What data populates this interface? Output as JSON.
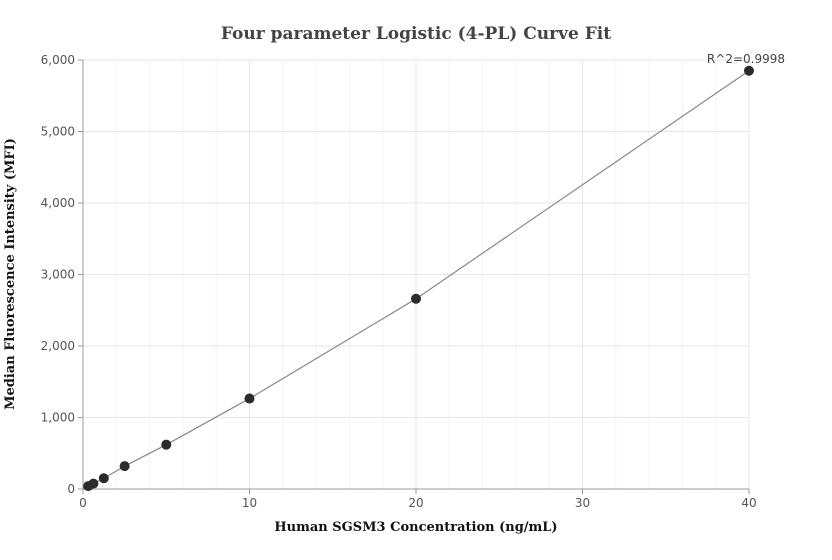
{
  "chart_data": {
    "type": "scatter",
    "title": "Four parameter Logistic (4-PL) Curve Fit",
    "xlabel": "Human SGSM3 Concentration (ng/mL)",
    "ylabel": "Median Fluorescence Intensity (MFI)",
    "xlim": [
      0,
      40
    ],
    "ylim": [
      0,
      6000
    ],
    "x_ticks": [
      0,
      10,
      20,
      30,
      40
    ],
    "y_ticks": [
      0,
      1000,
      2000,
      3000,
      4000,
      5000,
      6000
    ],
    "x_tick_labels": [
      "0",
      "10",
      "20",
      "30",
      "40"
    ],
    "y_tick_labels": [
      "0",
      "1,000",
      "2,000",
      "3,000",
      "4,000",
      "5,000",
      "6,000"
    ],
    "grid": true,
    "points": [
      {
        "x": 0.3125,
        "y": 40
      },
      {
        "x": 0.625,
        "y": 75
      },
      {
        "x": 1.25,
        "y": 150
      },
      {
        "x": 2.5,
        "y": 320
      },
      {
        "x": 5,
        "y": 620
      },
      {
        "x": 10,
        "y": 1265
      },
      {
        "x": 20,
        "y": 2660
      },
      {
        "x": 40,
        "y": 5850
      }
    ],
    "fit_curve": "4-PL",
    "annotation": "R^2=0.9998",
    "colors": {
      "points": "#2b2b2b",
      "curve": "#888888",
      "grid": "#e6e6e6",
      "axis": "#999999"
    }
  }
}
